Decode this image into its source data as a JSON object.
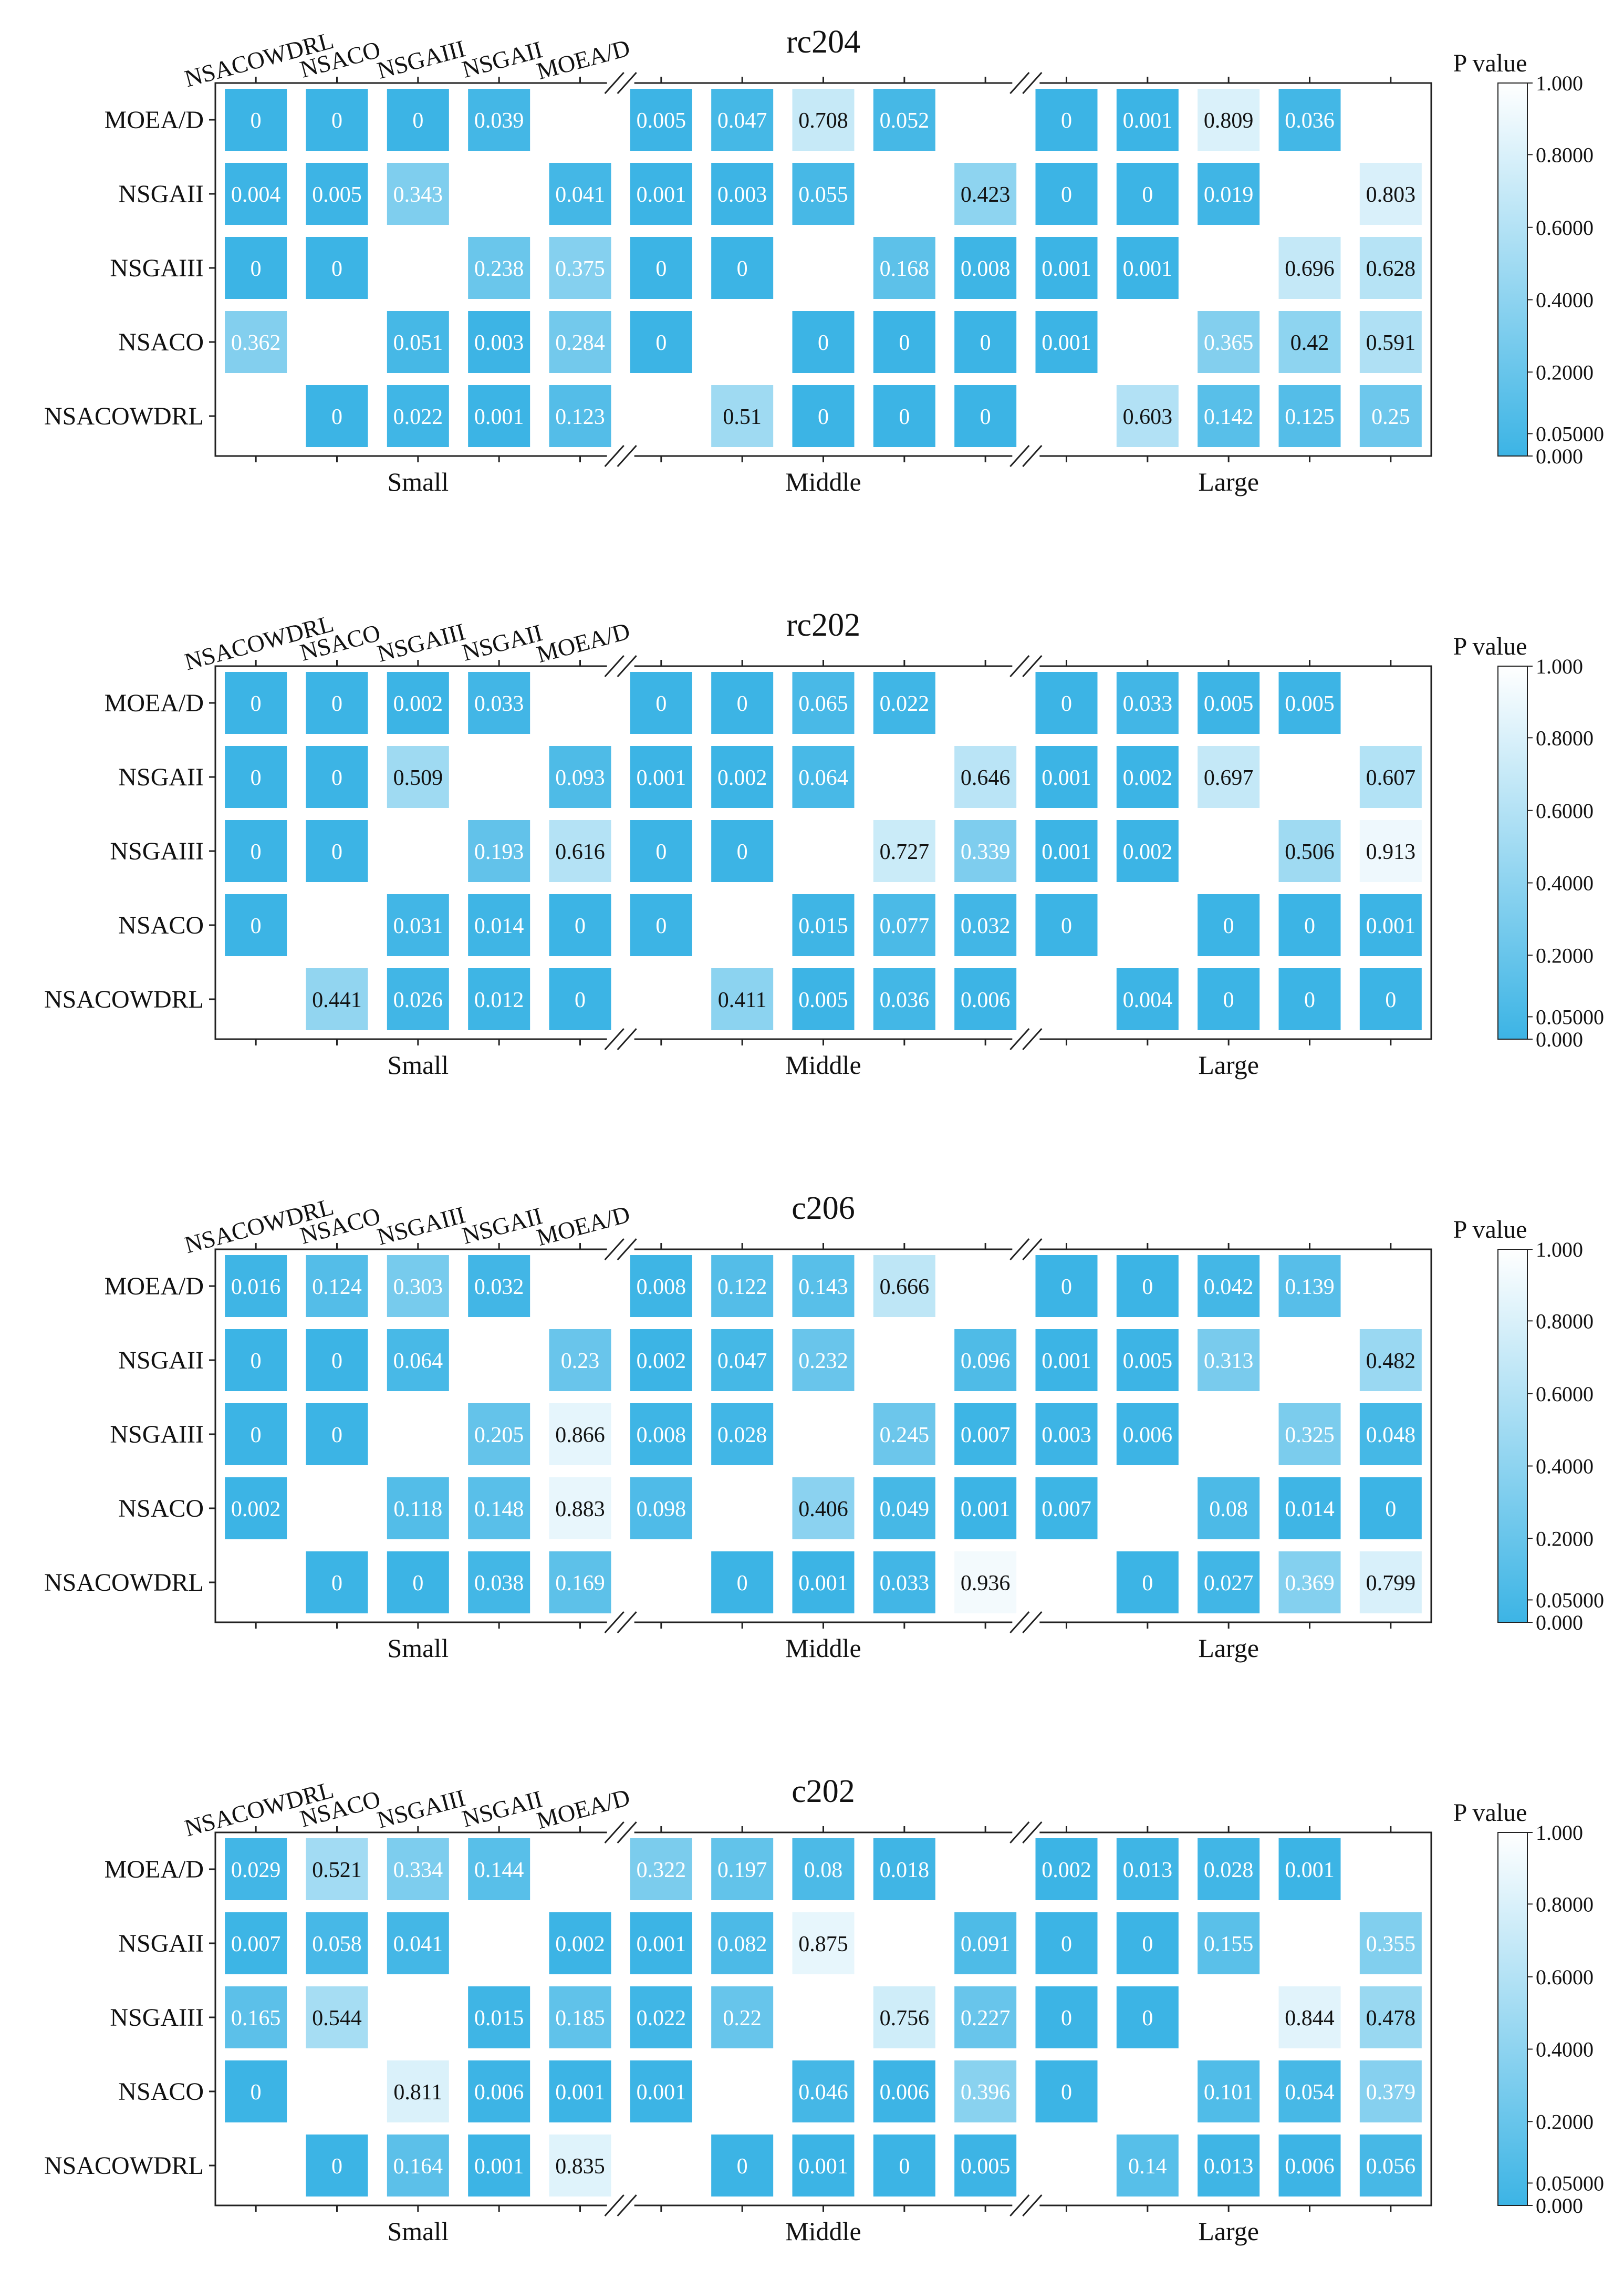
{
  "colorbar": {
    "label": "P value",
    "ticks": [
      "1.000",
      "0.8000",
      "0.6000",
      "0.4000",
      "0.2000",
      "0.05000",
      "0.000"
    ],
    "color_low": "#3cb4e5",
    "color_high": "#ffffff"
  },
  "chart_data": [
    {
      "type": "heatmap",
      "title": "rc204",
      "rows": [
        "MOEA/D",
        "NSGAII",
        "NSGAIII",
        "NSACO",
        "NSACOWDRL"
      ],
      "columns": [
        "NSACOWDRL",
        "NSACO",
        "NSGAIII",
        "NSGAII",
        "MOEA/D"
      ],
      "groups": [
        "Small",
        "Middle",
        "Large"
      ],
      "values": [
        [
          [
            "0",
            "0",
            "0",
            "0.039",
            ""
          ],
          [
            "0.005",
            "0.047",
            "0.708",
            "0.052",
            ""
          ],
          [
            "0",
            "0.001",
            "0.809",
            "0.036",
            ""
          ]
        ],
        [
          [
            "0.004",
            "0.005",
            "0.343",
            "",
            "0.041"
          ],
          [
            "0.001",
            "0.003",
            "0.055",
            "",
            "0.423"
          ],
          [
            "0",
            "0",
            "0.019",
            "",
            "0.803"
          ]
        ],
        [
          [
            "0",
            "0",
            "",
            "0.238",
            "0.375"
          ],
          [
            "0",
            "0",
            "",
            "0.168",
            "0.008"
          ],
          [
            "0.001",
            "0.001",
            "",
            "0.696",
            "0.628"
          ]
        ],
        [
          [
            "0.362",
            "",
            "0.051",
            "0.003",
            "0.284"
          ],
          [
            "0",
            "",
            "0",
            "0",
            "0"
          ],
          [
            "0.001",
            "",
            "0.365",
            "0.42",
            "0.591"
          ]
        ],
        [
          [
            "",
            "0",
            "0.022",
            "0.001",
            "0.123"
          ],
          [
            "",
            "0.51",
            "0",
            "0",
            "0"
          ],
          [
            "",
            "0.603",
            "0.142",
            "0.125",
            "0.25"
          ]
        ]
      ]
    },
    {
      "type": "heatmap",
      "title": "rc202",
      "rows": [
        "MOEA/D",
        "NSGAII",
        "NSGAIII",
        "NSACO",
        "NSACOWDRL"
      ],
      "columns": [
        "NSACOWDRL",
        "NSACO",
        "NSGAIII",
        "NSGAII",
        "MOEA/D"
      ],
      "groups": [
        "Small",
        "Middle",
        "Large"
      ],
      "values": [
        [
          [
            "0",
            "0",
            "0.002",
            "0.033",
            ""
          ],
          [
            "0",
            "0",
            "0.065",
            "0.022",
            ""
          ],
          [
            "0",
            "0.033",
            "0.005",
            "0.005",
            ""
          ]
        ],
        [
          [
            "0",
            "0",
            "0.509",
            "",
            "0.093"
          ],
          [
            "0.001",
            "0.002",
            "0.064",
            "",
            "0.646"
          ],
          [
            "0.001",
            "0.002",
            "0.697",
            "",
            "0.607"
          ]
        ],
        [
          [
            "0",
            "0",
            "",
            "0.193",
            "0.616"
          ],
          [
            "0",
            "0",
            "",
            "0.727",
            "0.339"
          ],
          [
            "0.001",
            "0.002",
            "",
            "0.506",
            "0.913"
          ]
        ],
        [
          [
            "0",
            "",
            "0.031",
            "0.014",
            "0"
          ],
          [
            "0",
            "",
            "0.015",
            "0.077",
            "0.032"
          ],
          [
            "0",
            "",
            "0",
            "0",
            "0.001"
          ]
        ],
        [
          [
            "",
            "0.441",
            "0.026",
            "0.012",
            "0"
          ],
          [
            "",
            "0.411",
            "0.005",
            "0.036",
            "0.006"
          ],
          [
            "",
            "0.004",
            "0",
            "0",
            "0"
          ]
        ]
      ]
    },
    {
      "type": "heatmap",
      "title": "c206",
      "rows": [
        "MOEA/D",
        "NSGAII",
        "NSGAIII",
        "NSACO",
        "NSACOWDRL"
      ],
      "columns": [
        "NSACOWDRL",
        "NSACO",
        "NSGAIII",
        "NSGAII",
        "MOEA/D"
      ],
      "groups": [
        "Small",
        "Middle",
        "Large"
      ],
      "values": [
        [
          [
            "0.016",
            "0.124",
            "0.303",
            "0.032",
            ""
          ],
          [
            "0.008",
            "0.122",
            "0.143",
            "0.666",
            ""
          ],
          [
            "0",
            "0",
            "0.042",
            "0.139",
            ""
          ]
        ],
        [
          [
            "0",
            "0",
            "0.064",
            "",
            "0.23"
          ],
          [
            "0.002",
            "0.047",
            "0.232",
            "",
            "0.096"
          ],
          [
            "0.001",
            "0.005",
            "0.313",
            "",
            "0.482"
          ]
        ],
        [
          [
            "0",
            "0",
            "",
            "0.205",
            "0.866"
          ],
          [
            "0.008",
            "0.028",
            "",
            "0.245",
            "0.007"
          ],
          [
            "0.003",
            "0.006",
            "",
            "0.325",
            "0.048"
          ]
        ],
        [
          [
            "0.002",
            "",
            "0.118",
            "0.148",
            "0.883"
          ],
          [
            "0.098",
            "",
            "0.406",
            "0.049",
            "0.001"
          ],
          [
            "0.007",
            "",
            "0.08",
            "0.014",
            "0"
          ]
        ],
        [
          [
            "",
            "0",
            "0",
            "0.038",
            "0.169"
          ],
          [
            "",
            "0",
            "0.001",
            "0.033",
            "0.936"
          ],
          [
            "",
            "0",
            "0.027",
            "0.369",
            "0.799"
          ]
        ]
      ]
    },
    {
      "type": "heatmap",
      "title": "c202",
      "rows": [
        "MOEA/D",
        "NSGAII",
        "NSGAIII",
        "NSACO",
        "NSACOWDRL"
      ],
      "columns": [
        "NSACOWDRL",
        "NSACO",
        "NSGAIII",
        "NSGAII",
        "MOEA/D"
      ],
      "groups": [
        "Small",
        "Middle",
        "Large"
      ],
      "values": [
        [
          [
            "0.029",
            "0.521",
            "0.334",
            "0.144",
            ""
          ],
          [
            "0.322",
            "0.197",
            "0.08",
            "0.018",
            ""
          ],
          [
            "0.002",
            "0.013",
            "0.028",
            "0.001",
            ""
          ]
        ],
        [
          [
            "0.007",
            "0.058",
            "0.041",
            "",
            "0.002"
          ],
          [
            "0.001",
            "0.082",
            "0.875",
            "",
            "0.091"
          ],
          [
            "0",
            "0",
            "0.155",
            "",
            "0.355"
          ]
        ],
        [
          [
            "0.165",
            "0.544",
            "",
            "0.015",
            "0.185"
          ],
          [
            "0.022",
            "0.22",
            "",
            "0.756",
            "0.227"
          ],
          [
            "0",
            "0",
            "",
            "0.844",
            "0.478"
          ]
        ],
        [
          [
            "0",
            "",
            "0.811",
            "0.006",
            "0.001"
          ],
          [
            "0.001",
            "",
            "0.046",
            "0.006",
            "0.396"
          ],
          [
            "0",
            "",
            "0.101",
            "0.054",
            "0.379"
          ]
        ],
        [
          [
            "",
            "0",
            "0.164",
            "0.001",
            "0.835"
          ],
          [
            "",
            "0",
            "0.001",
            "0",
            "0.005"
          ],
          [
            "",
            "0.14",
            "0.013",
            "0.006",
            "0.056"
          ]
        ]
      ]
    }
  ]
}
